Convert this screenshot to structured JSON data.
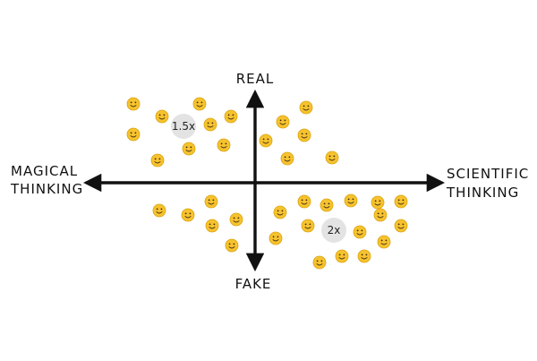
{
  "axes": {
    "top": "REAL",
    "bottom": "FAKE",
    "left": [
      "MAGICAL",
      "THINKING"
    ],
    "right": [
      "SCIENTIFIC",
      "THINKING"
    ]
  },
  "badges": {
    "upper_left": "1.5x",
    "lower_right": "2x"
  },
  "colors": {
    "ink": "#111111",
    "smiley_face": "#F6C22E",
    "smiley_outline": "#D9A40F",
    "smiley_features": "#3A2A10",
    "badge_fill": "#E3E3E3"
  },
  "icon": "smiley-face-icon",
  "quadrants": {
    "upper_left_count": 13,
    "upper_right_count": 7,
    "lower_left_count": 8,
    "lower_right_count": 18
  }
}
